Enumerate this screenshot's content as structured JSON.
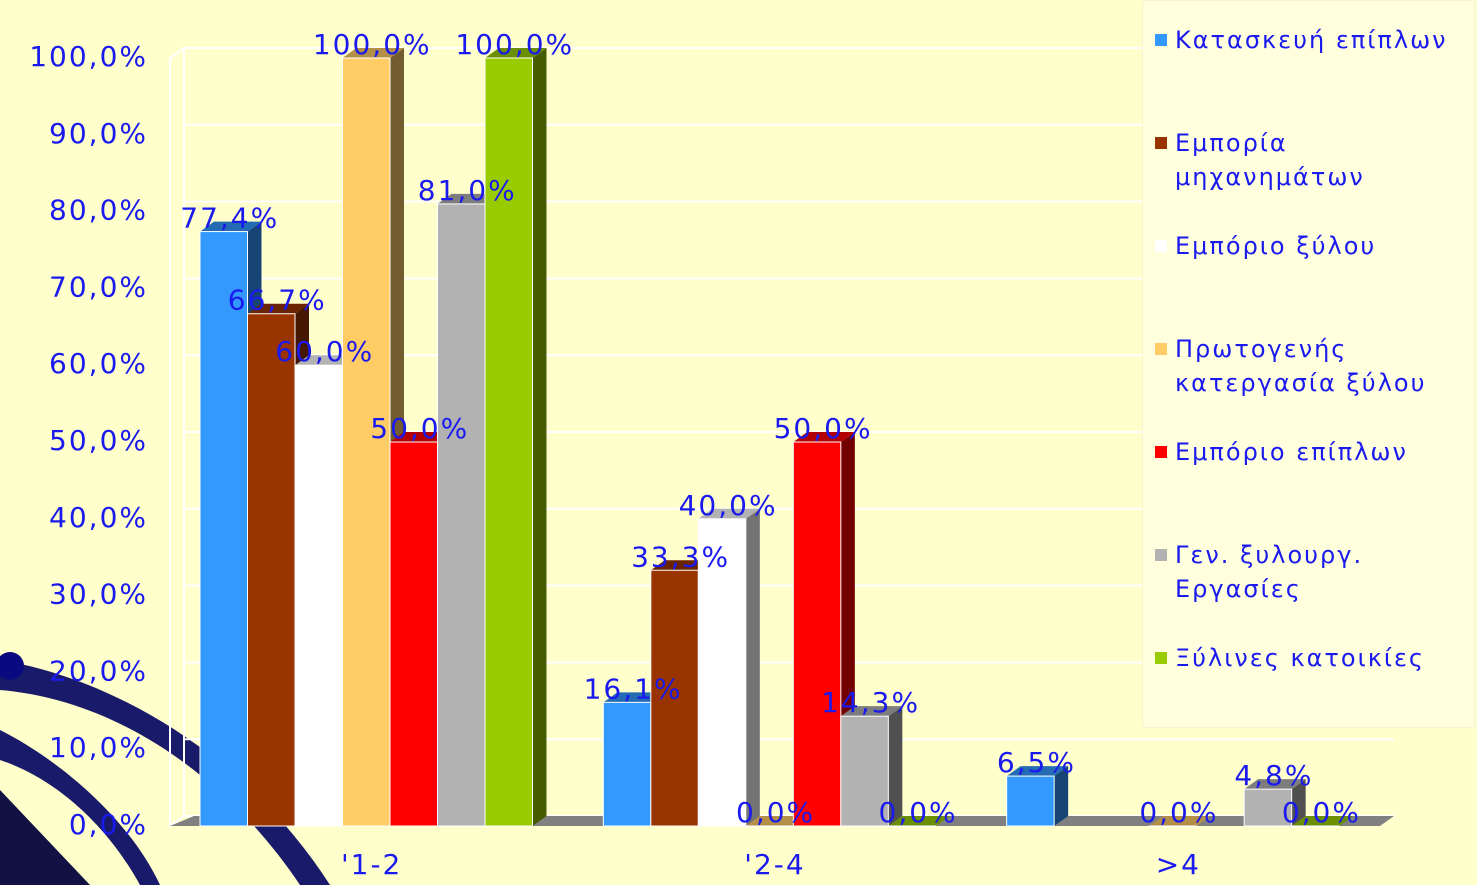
{
  "chart_data": {
    "type": "bar",
    "categories": [
      "'1-2",
      "'2-4",
      ">4"
    ],
    "ylim": [
      0,
      100
    ],
    "yticks": [
      {
        "value": 0,
        "label": "0,0%"
      },
      {
        "value": 10,
        "label": "10,0%"
      },
      {
        "value": 20,
        "label": "20,0%"
      },
      {
        "value": 30,
        "label": "30,0%"
      },
      {
        "value": 40,
        "label": "40,0%"
      },
      {
        "value": 50,
        "label": "50,0%"
      },
      {
        "value": 60,
        "label": "60,0%"
      },
      {
        "value": 70,
        "label": "70,0%"
      },
      {
        "value": 80,
        "label": "80,0%"
      },
      {
        "value": 90,
        "label": "90,0%"
      },
      {
        "value": 100,
        "label": "100,0%"
      }
    ],
    "grid": true,
    "series": [
      {
        "name": "Κατασκευή επίπλων",
        "color": "#3399ff",
        "values": [
          77.4,
          16.1,
          6.5
        ],
        "value_labels": [
          "77,4%",
          "16,1%",
          "6,5%"
        ]
      },
      {
        "name": "Εμπορία μηχανημάτων",
        "color": "#993300",
        "values": [
          66.7,
          33.3,
          null
        ],
        "value_labels": [
          "66,7%",
          "33,3%",
          null
        ]
      },
      {
        "name": "Εμπόριο ξύλου",
        "color": "#ffffff",
        "values": [
          60.0,
          40.0,
          null
        ],
        "value_labels": [
          "60,0%",
          "40,0%",
          null
        ]
      },
      {
        "name": "Πρωτογενής κατεργασία ξύλου",
        "color": "#ffcc66",
        "values": [
          100.0,
          0.0,
          0.0
        ],
        "value_labels": [
          "100,0%",
          "0,0%",
          "0,0%"
        ]
      },
      {
        "name": "Εμπόριο επίπλων",
        "color": "#ff0000",
        "values": [
          50.0,
          50.0,
          null
        ],
        "value_labels": [
          "50,0%",
          "50,0%",
          null
        ]
      },
      {
        "name": "Γεν. ξυλουργ. Εργασίες",
        "color": "#b2b2b2",
        "values": [
          81.0,
          14.3,
          4.8
        ],
        "value_labels": [
          "81,0%",
          "14,3%",
          "4,8%"
        ]
      },
      {
        "name": "Ξύλινες κατοικίες",
        "color": "#99cc00",
        "values": [
          100.0,
          0.0,
          0.0
        ],
        "value_labels": [
          "100,0%",
          "0,0%",
          "0,0%"
        ]
      }
    ]
  }
}
